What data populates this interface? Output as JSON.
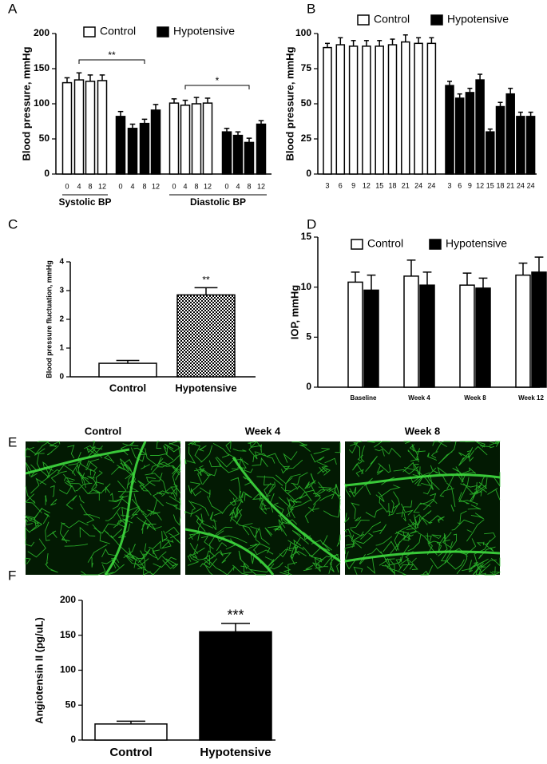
{
  "chart_data": [
    {
      "type": "bar",
      "panel": "A",
      "ylabel": "Blood pressure, mmHg",
      "ylim": [
        0,
        200
      ],
      "yticks": [
        0,
        50,
        100,
        150,
        200
      ],
      "categories": [
        "0",
        "4",
        "8",
        "12",
        "0",
        "4",
        "8",
        "12",
        "0",
        "4",
        "8",
        "12",
        "0",
        "4",
        "8",
        "12"
      ],
      "groups": [
        "Systolic BP",
        "Diastolic BP"
      ],
      "series": [
        {
          "name": "Control",
          "color": "#ffffff",
          "values": [
            130,
            134,
            132,
            133,
            null,
            null,
            null,
            null,
            101,
            98,
            100,
            101,
            null,
            null,
            null,
            null
          ],
          "errors": [
            7,
            10,
            9,
            8,
            null,
            null,
            null,
            null,
            6,
            7,
            9,
            7,
            null,
            null,
            null,
            null
          ]
        },
        {
          "name": "Hypotensive",
          "color": "#000000",
          "values": [
            null,
            null,
            null,
            null,
            82,
            65,
            72,
            91,
            null,
            null,
            null,
            null,
            60,
            55,
            45,
            71
          ],
          "errors": [
            null,
            null,
            null,
            null,
            7,
            6,
            6,
            8,
            null,
            null,
            null,
            null,
            5,
            5,
            6,
            5
          ]
        }
      ],
      "annotations": [
        "**",
        "*"
      ]
    },
    {
      "type": "bar",
      "panel": "B",
      "ylabel": "Blood pressure, mmHg",
      "ylim": [
        0,
        100
      ],
      "yticks": [
        0,
        25,
        50,
        75,
        100
      ],
      "categories": [
        "3",
        "6",
        "9",
        "12",
        "15",
        "18",
        "21",
        "24",
        "24",
        "3",
        "6",
        "9",
        "12",
        "15",
        "18",
        "21",
        "24",
        "24"
      ],
      "series": [
        {
          "name": "Control",
          "color": "#ffffff",
          "values": [
            90,
            92,
            91,
            91,
            91,
            92,
            94,
            93,
            93,
            null,
            null,
            null,
            null,
            null,
            null,
            null,
            null,
            null
          ],
          "errors": [
            3,
            5,
            4,
            4,
            4,
            4,
            5,
            4,
            4,
            null,
            null,
            null,
            null,
            null,
            null,
            null,
            null,
            null
          ]
        },
        {
          "name": "Hypotensive",
          "color": "#000000",
          "values": [
            null,
            null,
            null,
            null,
            null,
            null,
            null,
            null,
            null,
            63,
            54,
            58,
            67,
            30,
            48,
            57,
            41,
            41
          ],
          "errors": [
            null,
            null,
            null,
            null,
            null,
            null,
            null,
            null,
            null,
            3,
            3,
            3,
            4,
            2,
            3,
            4,
            3,
            3
          ]
        }
      ]
    },
    {
      "type": "bar",
      "panel": "C",
      "ylabel": "Blood pressure fluctuation, mmHg",
      "ylim": [
        0,
        4
      ],
      "yticks": [
        0,
        1,
        2,
        3,
        4
      ],
      "categories": [
        "Control",
        "Hypotensive"
      ],
      "values": [
        0.47,
        2.85
      ],
      "errors": [
        0.1,
        0.25
      ],
      "colors": [
        "#ffffff",
        "checkered"
      ],
      "annotations": [
        "**"
      ]
    },
    {
      "type": "bar",
      "panel": "D",
      "ylabel": "IOP, mmHg",
      "ylim": [
        0,
        15
      ],
      "yticks": [
        0,
        5,
        10,
        15
      ],
      "categories": [
        "Baseline",
        "Week 4",
        "Week 8",
        "Week 12"
      ],
      "series": [
        {
          "name": "Control",
          "color": "#ffffff",
          "values": [
            10.5,
            11.1,
            10.2,
            11.2
          ],
          "errors": [
            1,
            1.6,
            1.2,
            1.2
          ]
        },
        {
          "name": "Hypotensive",
          "color": "#000000",
          "values": [
            9.7,
            10.2,
            9.9,
            11.5
          ],
          "errors": [
            1.5,
            1.3,
            1,
            1.5
          ]
        }
      ]
    },
    {
      "type": "bar",
      "panel": "F",
      "ylabel": "Angiotensin II (pg/uL)",
      "ylim": [
        0,
        200
      ],
      "yticks": [
        0,
        50,
        100,
        150,
        200
      ],
      "categories": [
        "Control",
        "Hypotensive"
      ],
      "values": [
        23,
        155
      ],
      "errors": [
        4,
        12
      ],
      "colors": [
        "#ffffff",
        "#000000"
      ],
      "annotations": [
        "***"
      ]
    }
  ],
  "images": {
    "panel": "E",
    "titles": [
      "Control",
      "Week 4",
      "Week 8"
    ]
  }
}
